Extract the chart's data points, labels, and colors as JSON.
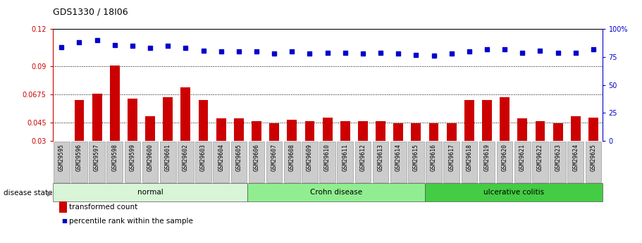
{
  "title": "GDS1330 / 18I06",
  "categories": [
    "GSM29595",
    "GSM29596",
    "GSM29597",
    "GSM29598",
    "GSM29599",
    "GSM29600",
    "GSM29601",
    "GSM29602",
    "GSM29603",
    "GSM29604",
    "GSM29605",
    "GSM29606",
    "GSM29607",
    "GSM29608",
    "GSM29609",
    "GSM29610",
    "GSM29611",
    "GSM29612",
    "GSM29613",
    "GSM29614",
    "GSM29615",
    "GSM29616",
    "GSM29617",
    "GSM29618",
    "GSM29619",
    "GSM29620",
    "GSM29621",
    "GSM29622",
    "GSM29623",
    "GSM29624",
    "GSM29625"
  ],
  "bar_values": [
    0.03,
    0.063,
    0.068,
    0.091,
    0.064,
    0.05,
    0.065,
    0.073,
    0.063,
    0.048,
    0.048,
    0.046,
    0.044,
    0.047,
    0.046,
    0.049,
    0.046,
    0.046,
    0.046,
    0.044,
    0.044,
    0.044,
    0.044,
    0.063,
    0.063,
    0.065,
    0.048,
    0.046,
    0.044,
    0.05,
    0.049
  ],
  "percentile_values": [
    84,
    88,
    90,
    86,
    85,
    83,
    85,
    83,
    81,
    80,
    80,
    80,
    78,
    80,
    78,
    79,
    79,
    78,
    79,
    78,
    77,
    76,
    78,
    80,
    82,
    82,
    79,
    81,
    79,
    79,
    82
  ],
  "group_configs": [
    {
      "label": "normal",
      "start": 0,
      "end": 10,
      "color": "#d8f5d8"
    },
    {
      "label": "Crohn disease",
      "start": 11,
      "end": 20,
      "color": "#90ee90"
    },
    {
      "label": "ulcerative colitis",
      "start": 21,
      "end": 30,
      "color": "#44cc44"
    }
  ],
  "ylim_left": [
    0.03,
    0.12
  ],
  "ylim_right": [
    0,
    100
  ],
  "yticks_left": [
    0.03,
    0.045,
    0.0675,
    0.09,
    0.12
  ],
  "ytick_labels_left": [
    "0.03",
    "0.045",
    "0.0675",
    "0.09",
    "0.12"
  ],
  "yticks_right": [
    0,
    25,
    50,
    75,
    100
  ],
  "ytick_labels_right": [
    "0",
    "25",
    "50",
    "75",
    "100%"
  ],
  "bar_color": "#cc0000",
  "dot_color": "#0000cc",
  "dotted_lines": [
    0.045,
    0.0675,
    0.09
  ],
  "disease_state_label": "disease state",
  "legend_bar": "transformed count",
  "legend_dot": "percentile rank within the sample",
  "title_fontsize": 9,
  "tick_fontsize": 7,
  "label_fontsize": 8
}
